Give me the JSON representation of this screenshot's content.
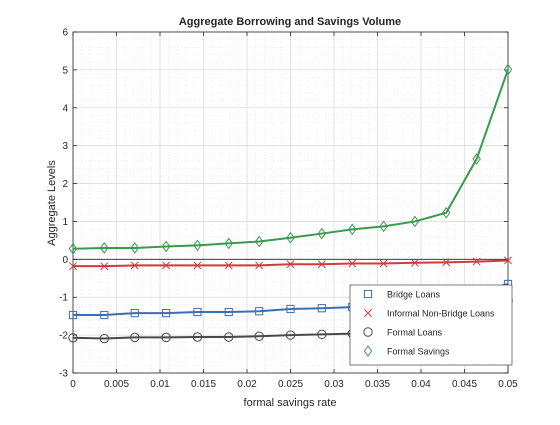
{
  "chart_data": {
    "type": "line",
    "title": "Aggregate Borrowing and Savings Volume",
    "xlabel": "formal savings rate",
    "ylabel": "Aggregate Levels",
    "xlim": [
      0,
      0.05
    ],
    "ylim": [
      -3,
      6
    ],
    "x_ticks": [
      0,
      0.005,
      0.01,
      0.015,
      0.02,
      0.025,
      0.03,
      0.035,
      0.04,
      0.045,
      0.05
    ],
    "x_tick_labels": [
      "0",
      "0.005",
      "0.01",
      "0.015",
      "0.02",
      "0.025",
      "0.03",
      "0.035",
      "0.04",
      "0.045",
      "0.05"
    ],
    "y_ticks": [
      -3,
      -2,
      -1,
      0,
      1,
      2,
      3,
      4,
      5,
      6
    ],
    "y_tick_labels": [
      "-3",
      "-2",
      "-1",
      "0",
      "1",
      "2",
      "3",
      "4",
      "5",
      "6"
    ],
    "grid": true,
    "minor_grid": true,
    "zero_line": true,
    "legend_position": "bottom-right",
    "x": [
      0,
      0.0036,
      0.0071,
      0.0107,
      0.0143,
      0.0179,
      0.0214,
      0.025,
      0.0286,
      0.0321,
      0.0357,
      0.0393,
      0.0429,
      0.0464,
      0.05
    ],
    "series": [
      {
        "name": "Bridge Loans",
        "color": "#3a6fb5",
        "marker": "square",
        "values": [
          -1.47,
          -1.47,
          -1.42,
          -1.42,
          -1.39,
          -1.39,
          -1.37,
          -1.31,
          -1.29,
          -1.26,
          -1.21,
          -1.21,
          -1.16,
          -0.87,
          -0.65
        ]
      },
      {
        "name": "Informal Non-Bridge Loans",
        "color": "#d13b3b",
        "marker": "x",
        "values": [
          -0.18,
          -0.18,
          -0.16,
          -0.16,
          -0.16,
          -0.16,
          -0.16,
          -0.13,
          -0.13,
          -0.11,
          -0.11,
          -0.09,
          -0.08,
          -0.06,
          -0.03
        ]
      },
      {
        "name": "Formal Loans",
        "color": "#4a4a4a",
        "marker": "circle",
        "values": [
          -2.07,
          -2.09,
          -2.06,
          -2.06,
          -2.05,
          -2.05,
          -2.03,
          -2.0,
          -1.98,
          -1.96,
          -1.95,
          -1.93,
          -1.84,
          -1.49,
          -1.09
        ]
      },
      {
        "name": "Formal Savings",
        "color": "#3a9a4d",
        "marker": "diamond",
        "values": [
          0.28,
          0.3,
          0.3,
          0.34,
          0.37,
          0.42,
          0.47,
          0.57,
          0.68,
          0.79,
          0.87,
          1.0,
          1.23,
          2.65,
          5.01
        ]
      }
    ]
  }
}
